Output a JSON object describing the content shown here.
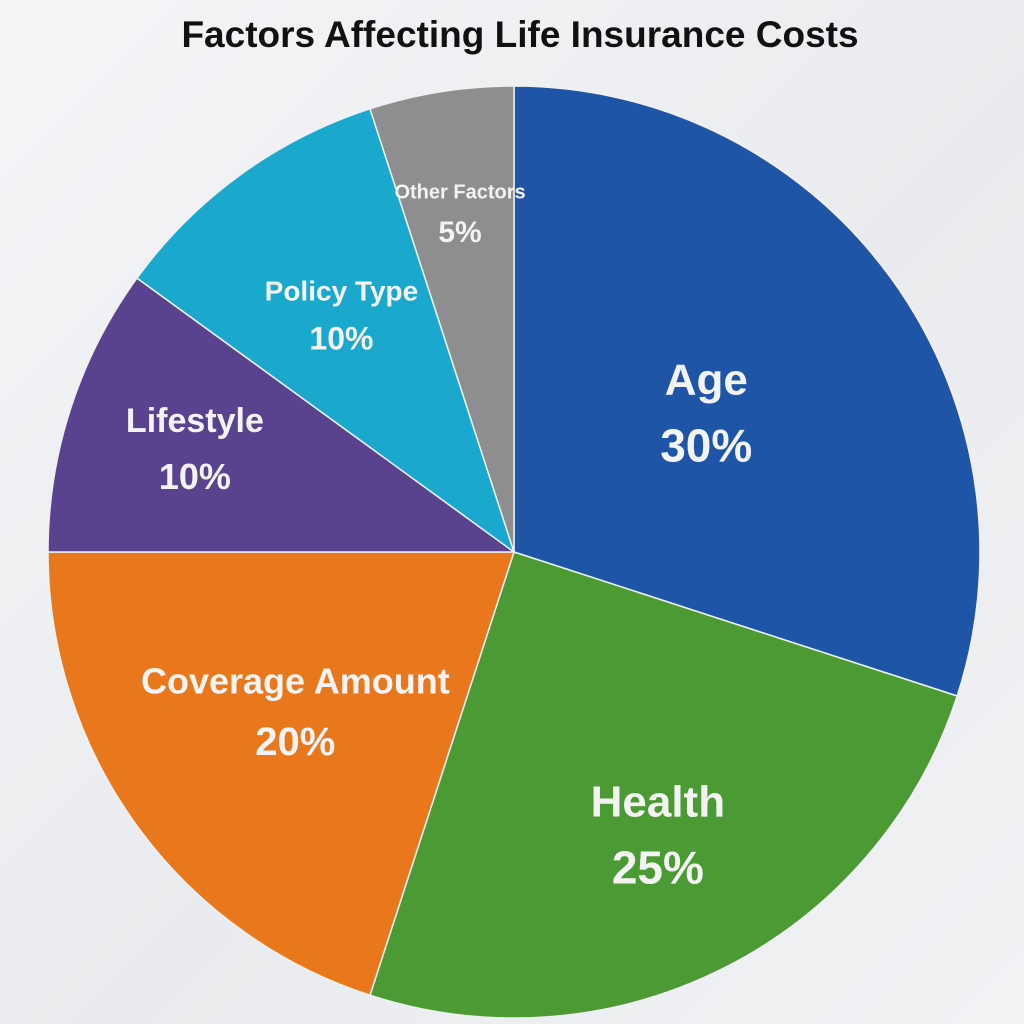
{
  "chart_data": {
    "type": "pie",
    "title": "Factors Affecting Life Insurance Costs",
    "start_angle_deg": 0,
    "direction": "clockwise",
    "legend": "none",
    "slices": [
      {
        "label": "Age",
        "value": 30,
        "value_label": "30%",
        "color": "#1f55a7"
      },
      {
        "label": "Health",
        "value": 25,
        "value_label": "25%",
        "color": "#4c9a33"
      },
      {
        "label": "Coverage Amount",
        "value": 20,
        "value_label": "20%",
        "color": "#e9781d"
      },
      {
        "label": "Lifestyle",
        "value": 10,
        "value_label": "10%",
        "color": "#5a438e"
      },
      {
        "label": "Policy Type",
        "value": 10,
        "value_label": "10%",
        "color": "#1aa8cc"
      },
      {
        "label": "Other Factors",
        "value": 5,
        "value_label": "5%",
        "color": "#8e8e8e"
      }
    ]
  }
}
